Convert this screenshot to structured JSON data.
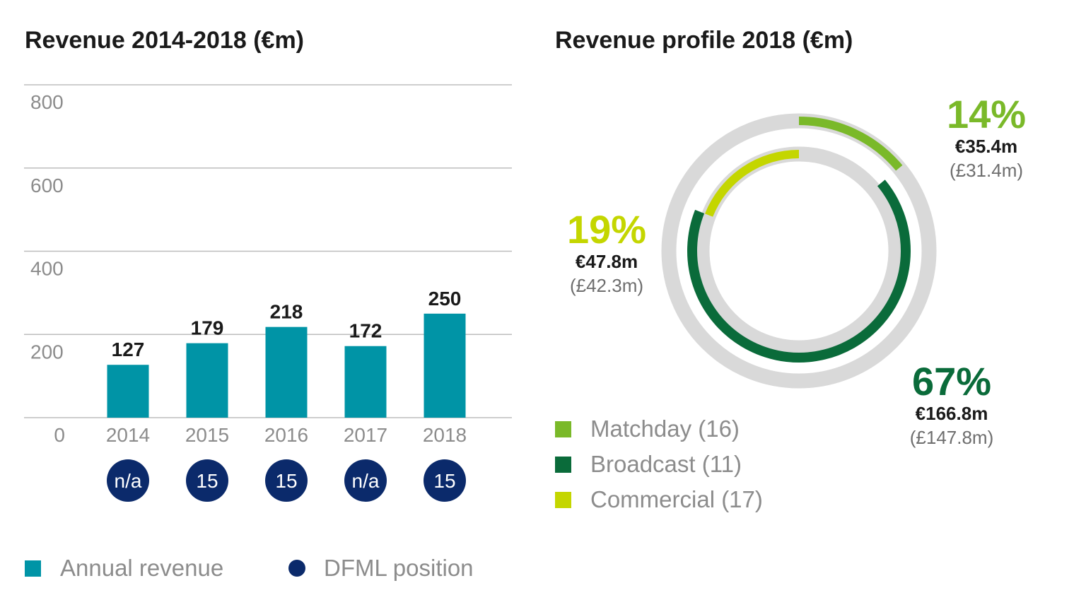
{
  "colors": {
    "revenue_bar": "#0094a6",
    "position_circle": "#0b2a6b",
    "matchday": "#7ab929",
    "broadcast": "#0a6b3a",
    "commercial": "#c4d600",
    "ring_track": "#d9d9d9",
    "gridline": "#bdbdbd"
  },
  "chart_data": [
    {
      "type": "bar",
      "title": "Revenue 2014-2018 (€m)",
      "categories": [
        "2014",
        "2015",
        "2016",
        "2017",
        "2018"
      ],
      "values": [
        127,
        179,
        218,
        172,
        250
      ],
      "data_labels": [
        "127",
        "179",
        "218",
        "172",
        "250"
      ],
      "ylim": [
        0,
        800
      ],
      "yticks": [
        "0",
        "200",
        "400",
        "600",
        "800"
      ],
      "grid": true,
      "positions": [
        "n/a",
        "15",
        "15",
        "n/a",
        "15"
      ],
      "legend": [
        {
          "label": "Annual revenue",
          "marker": "square"
        },
        {
          "label": "DFML position",
          "marker": "circle"
        }
      ],
      "legend_placement": "bottom"
    },
    {
      "type": "pie",
      "title": "Revenue profile 2018 (€m)",
      "series": [
        {
          "name": "Matchday (16)",
          "percent": 14,
          "value": 35.4,
          "label_pct": "14%",
          "label_eur": "€35.4m",
          "label_gbp": "(£31.4m)"
        },
        {
          "name": "Broadcast (11)",
          "percent": 67,
          "value": 166.8,
          "label_pct": "67%",
          "label_eur": "€166.8m",
          "label_gbp": "(£147.8m)"
        },
        {
          "name": "Commercial (17)",
          "percent": 19,
          "value": 47.8,
          "label_pct": "19%",
          "label_eur": "€47.8m",
          "label_gbp": "(£42.3m)"
        }
      ],
      "legend_placement": "bottom-left"
    }
  ]
}
